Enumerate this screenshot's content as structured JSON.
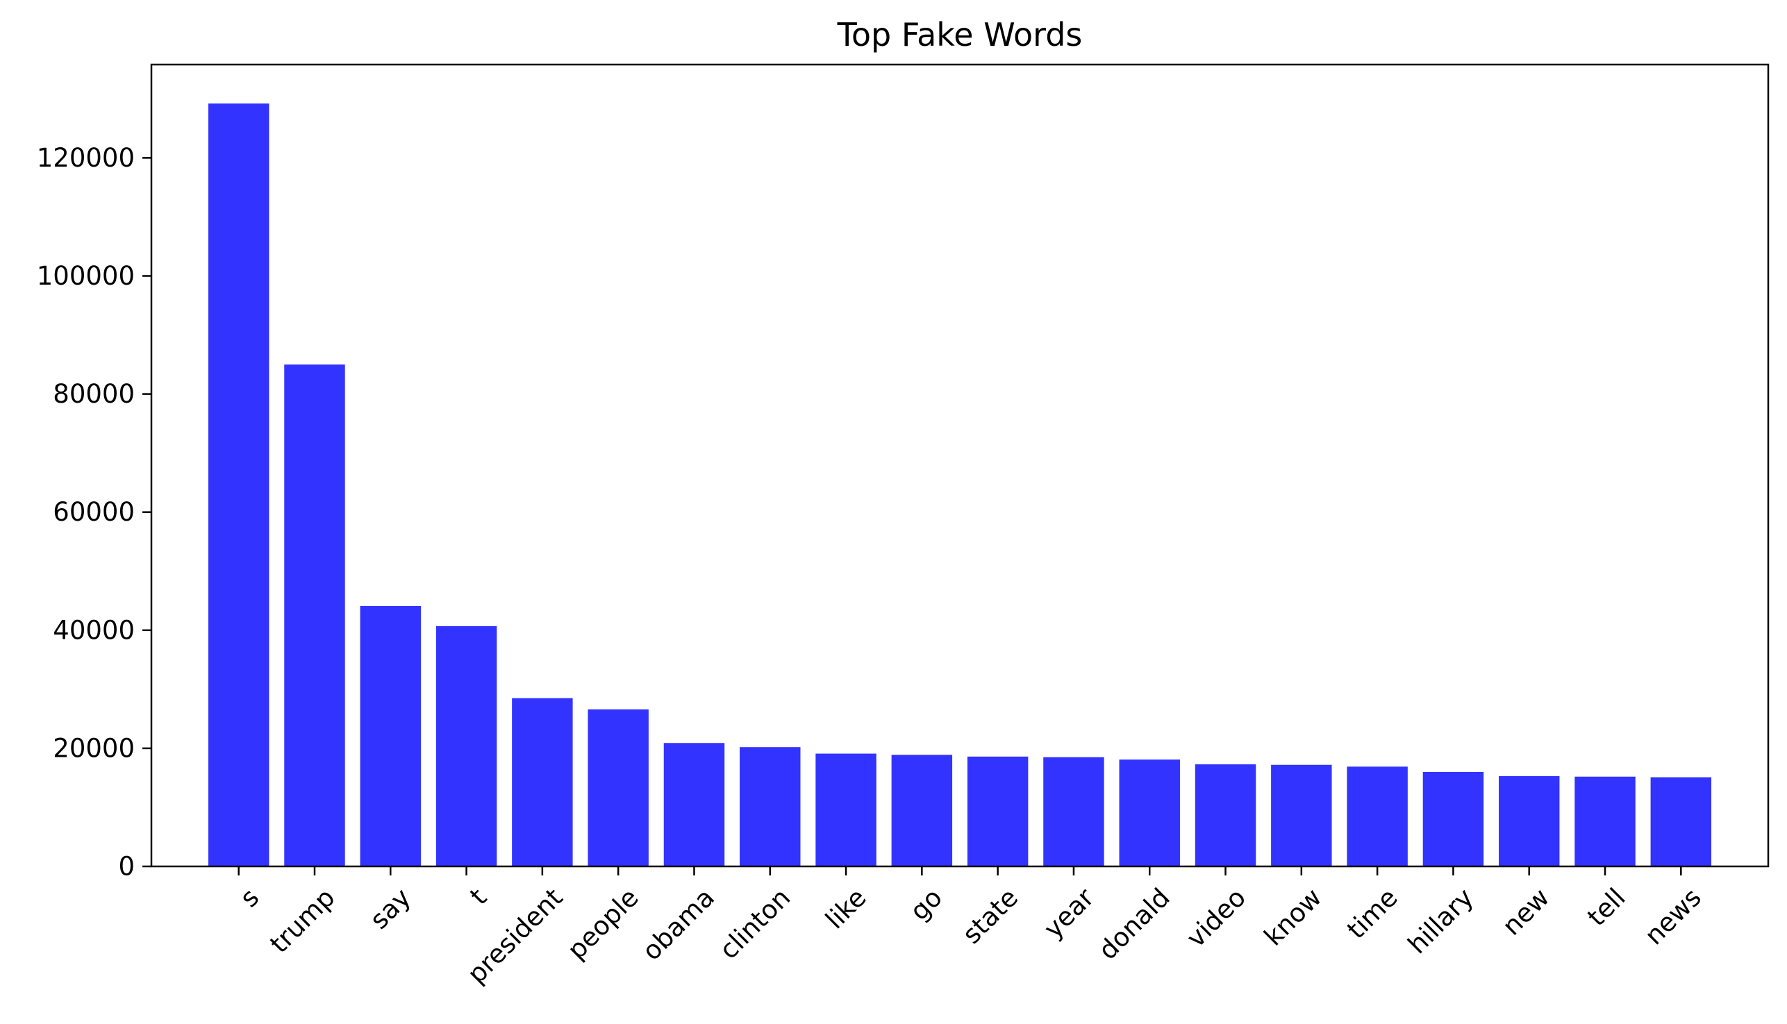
{
  "chart_data": {
    "type": "bar",
    "title": "Top Fake Words",
    "xlabel": "",
    "ylabel": "",
    "categories": [
      "s",
      "trump",
      "say",
      "t",
      "president",
      "people",
      "obama",
      "clinton",
      "like",
      "go",
      "state",
      "year",
      "donald",
      "video",
      "know",
      "time",
      "hillary",
      "new",
      "tell",
      "news"
    ],
    "values": [
      129200,
      85000,
      44100,
      40700,
      28500,
      26600,
      20900,
      20200,
      19100,
      18900,
      18600,
      18500,
      18100,
      17300,
      17200,
      16900,
      16000,
      15300,
      15200,
      15100
    ],
    "ylim": [
      0,
      135800
    ],
    "yticks": [
      "0",
      "20000",
      "40000",
      "60000",
      "80000",
      "100000",
      "120000"
    ],
    "bar_color": "#3333ff",
    "grid": false,
    "x_tick_rotation_deg": 45
  }
}
